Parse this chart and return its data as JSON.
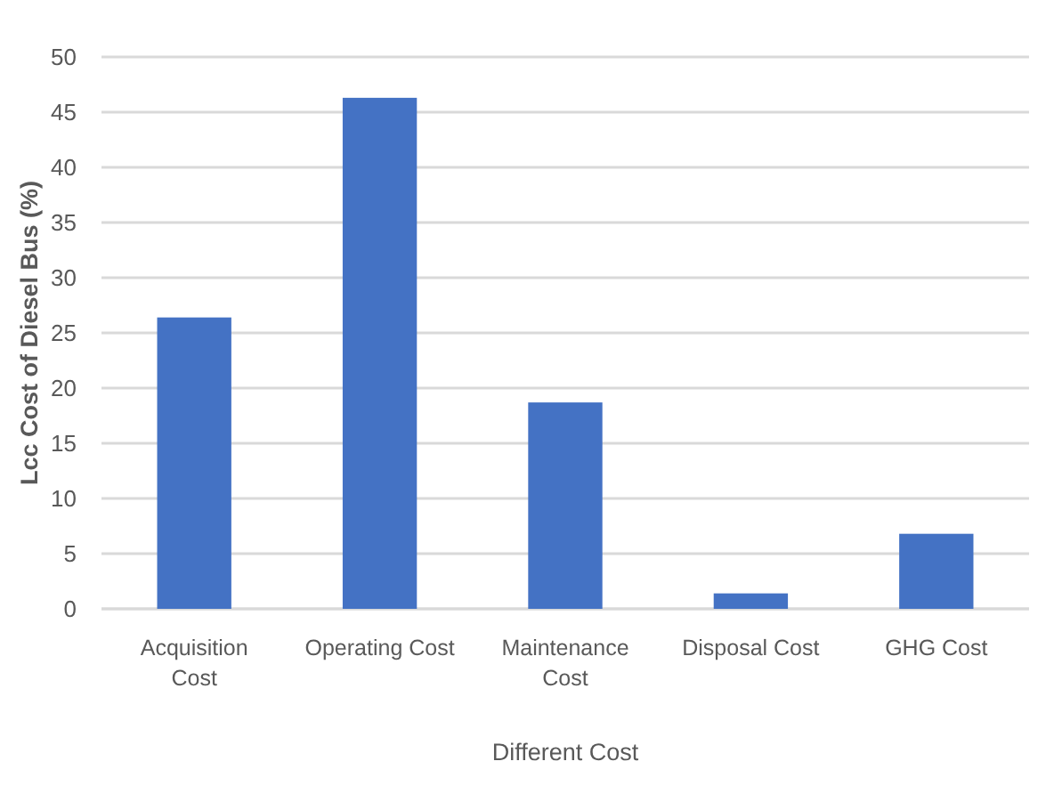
{
  "chart_data": {
    "type": "bar",
    "xlabel": "Different Cost",
    "ylabel": "Lcc Cost of Diesel Bus (%)",
    "categories": [
      "Acquisition Cost",
      "Operating Cost",
      "Maintenance Cost",
      "Disposal Cost",
      "GHG Cost"
    ],
    "values": [
      26.4,
      46.3,
      18.7,
      1.4,
      6.8
    ],
    "color": "#4472c4",
    "ylim": [
      0,
      50
    ],
    "yticks": [
      0,
      5,
      10,
      15,
      20,
      25,
      30,
      35,
      40,
      45,
      50
    ],
    "grid": "y"
  }
}
